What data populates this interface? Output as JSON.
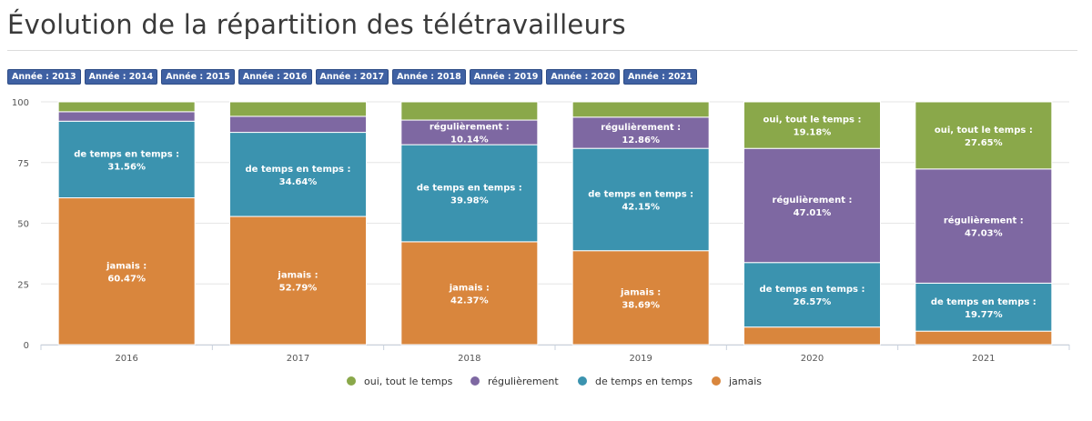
{
  "title": "Évolution de la répartition des télétravailleurs",
  "year_filters": [
    "Année : 2013",
    "Année : 2014",
    "Année : 2015",
    "Année : 2016",
    "Année : 2017",
    "Année : 2018",
    "Année : 2019",
    "Année : 2020",
    "Année : 2021"
  ],
  "colors": {
    "oui_tout_le_temps": "#8aa84a",
    "regulierement": "#7e68a2",
    "de_temps_en_temps": "#3b93af",
    "jamais": "#d9863d",
    "filter_button": "#3f61a3"
  },
  "chart_data": {
    "type": "bar",
    "stacked": true,
    "categories": [
      "2016",
      "2017",
      "2018",
      "2019",
      "2020",
      "2021"
    ],
    "ylim": [
      0,
      100
    ],
    "yticks": [
      0,
      25,
      50,
      75,
      100
    ],
    "grid": true,
    "legend_position": "bottom",
    "series": [
      {
        "name": "jamais",
        "color_key": "jamais",
        "values": [
          60.47,
          52.79,
          42.37,
          38.69,
          7.24,
          5.55
        ],
        "labels": [
          "60.47%",
          "52.79%",
          "42.37%",
          "38.69%",
          "",
          ""
        ]
      },
      {
        "name": "de temps en temps",
        "color_key": "de_temps_en_temps",
        "values": [
          31.56,
          34.64,
          39.98,
          42.15,
          26.57,
          19.77
        ],
        "labels": [
          "31.56%",
          "34.64%",
          "39.98%",
          "42.15%",
          "26.57%",
          "19.77%"
        ]
      },
      {
        "name": "régulièrement",
        "color_key": "regulierement",
        "values": [
          3.9,
          6.6,
          10.14,
          12.86,
          47.01,
          47.03
        ],
        "labels": [
          "",
          "",
          "10.14%",
          "12.86%",
          "47.01%",
          "47.03%"
        ]
      },
      {
        "name": "oui, tout le temps",
        "color_key": "oui_tout_le_temps",
        "values": [
          4.07,
          5.97,
          7.51,
          6.3,
          19.18,
          27.65
        ],
        "labels": [
          "",
          "",
          "",
          "",
          "19.18%",
          "27.65%"
        ]
      }
    ],
    "legend_order": [
      "oui, tout le temps",
      "régulièrement",
      "de temps en temps",
      "jamais"
    ]
  }
}
